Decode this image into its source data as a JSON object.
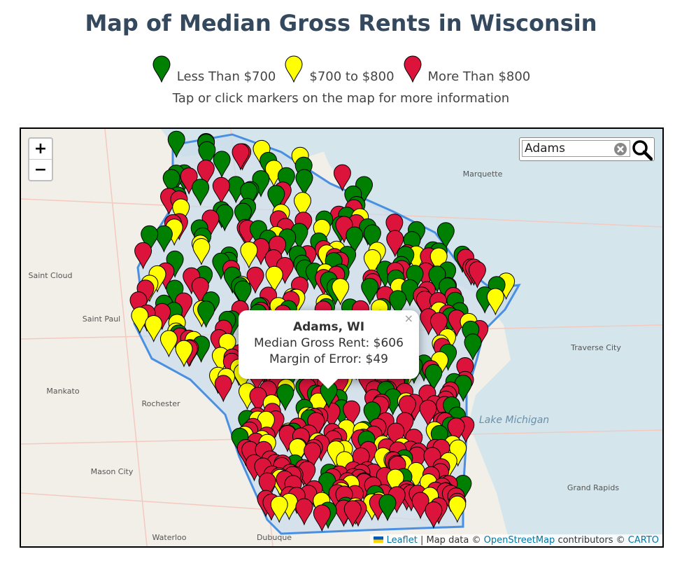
{
  "header": {
    "title": "Map of Median Gross Rents in Wisconsin",
    "legend": [
      {
        "label": "Less Than $700",
        "color": "#008000"
      },
      {
        "label": "$700 to $800",
        "color": "#ffff00"
      },
      {
        "label": "More Than $800",
        "color": "#dc143c"
      }
    ],
    "instructions": "Tap or click markers on the map for more information"
  },
  "map": {
    "search": "Adams",
    "zoom_in": "+",
    "zoom_out": "−",
    "popup": {
      "title": "Adams, WI",
      "lines": [
        "Median Gross Rent: $606",
        "Margin of Error: $49"
      ],
      "close": "×"
    },
    "place_labels": [
      "Marquette",
      "Saint Cloud",
      "Saint Paul",
      "Traverse City",
      "Mankato",
      "Rochester",
      "Lake Michigan",
      "Mason City",
      "Grand Rapids",
      "Waterloo",
      "Dubuque"
    ],
    "attribution": {
      "leaflet": "Leaflet",
      "sep": "| Map data ©",
      "osm": "OpenStreetMap",
      "contrib": "contributors ©",
      "carto": "CARTO"
    }
  }
}
